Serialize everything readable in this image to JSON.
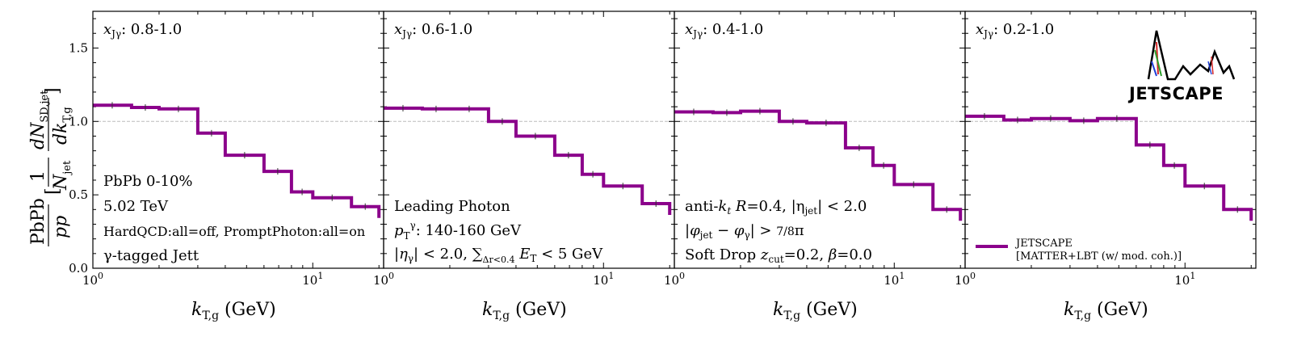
{
  "figure": {
    "ylabel": "PbPb/pp [ (1/N_jet) dN_SD,jet / dk_T,g ]",
    "xlabel": "k_T,g (GeV)",
    "line_color": "#8b008b",
    "ref_line_color": "#bbbbbb",
    "logo_text": "JETSCAPE"
  },
  "chart_data": [
    {
      "type": "line",
      "panel_label": "x_Jγ: 0.8-1.0",
      "x_scale": "log",
      "xlim": [
        1,
        21
      ],
      "ylim": [
        0,
        1.75
      ],
      "yticks": [
        0.0,
        0.5,
        1.0,
        1.5
      ],
      "xlabel": "k_T,g (GeV)",
      "reference_line": 1.0,
      "bin_edges": [
        1,
        1.5,
        2,
        3,
        4,
        6,
        8,
        10,
        15,
        20
      ],
      "series": [
        {
          "values": [
            1.11,
            1.095,
            1.085,
            0.92,
            0.77,
            0.66,
            0.52,
            0.48,
            0.42
          ]
        }
      ],
      "annotations": [
        "PbPb 0-10%",
        "5.02 TeV",
        "HardQCD:all=off, PromptPhoton:all=on",
        "γ-tagged Jett"
      ]
    },
    {
      "type": "line",
      "panel_label": "x_Jγ: 0.6-1.0",
      "x_scale": "log",
      "xlim": [
        1,
        21
      ],
      "ylim": [
        0,
        1.75
      ],
      "xlabel": "k_T,g (GeV)",
      "reference_line": 1.0,
      "bin_edges": [
        1,
        1.5,
        2,
        3,
        4,
        6,
        8,
        10,
        15,
        20
      ],
      "series": [
        {
          "values": [
            1.09,
            1.085,
            1.085,
            1.0,
            0.9,
            0.77,
            0.64,
            0.56,
            0.44
          ]
        }
      ],
      "annotations": [
        "Leading Photon",
        "p_T^γ: 140-160 GeV",
        "|η_γ| < 2.0, Σ_{Δr<0.4} E_T < 5 GeV"
      ]
    },
    {
      "type": "line",
      "panel_label": "x_Jγ: 0.4-1.0",
      "x_scale": "log",
      "xlim": [
        1,
        21
      ],
      "ylim": [
        0,
        1.75
      ],
      "xlabel": "k_T,g (GeV)",
      "reference_line": 1.0,
      "bin_edges": [
        1,
        1.5,
        2,
        3,
        4,
        6,
        8,
        10,
        15,
        20
      ],
      "series": [
        {
          "values": [
            1.065,
            1.06,
            1.07,
            1.0,
            0.99,
            0.82,
            0.7,
            0.57,
            0.4
          ]
        }
      ],
      "annotations": [
        "anti-k_t R=0.4, |η_jet| < 2.0",
        "|φ_jet − φ_γ| > 7/8 π",
        "Soft Drop z_cut=0.2, β=0.0"
      ]
    },
    {
      "type": "line",
      "panel_label": "x_Jγ: 0.2-1.0",
      "x_scale": "log",
      "xlim": [
        1,
        21
      ],
      "ylim": [
        0,
        1.75
      ],
      "xlabel": "k_T,g (GeV)",
      "reference_line": 1.0,
      "bin_edges": [
        1,
        1.5,
        2,
        3,
        4,
        6,
        8,
        10,
        15,
        20
      ],
      "series": [
        {
          "name": "JETSCAPE [MATTER+LBT (w/ mod. coh.)]",
          "values": [
            1.035,
            1.01,
            1.02,
            1.005,
            1.02,
            0.84,
            0.7,
            0.56,
            0.4
          ]
        }
      ],
      "legend": {
        "line1": "JETSCAPE",
        "line2": "[MATTER+LBT (w/ mod. coh.)]",
        "placement": "lower-right"
      }
    }
  ]
}
